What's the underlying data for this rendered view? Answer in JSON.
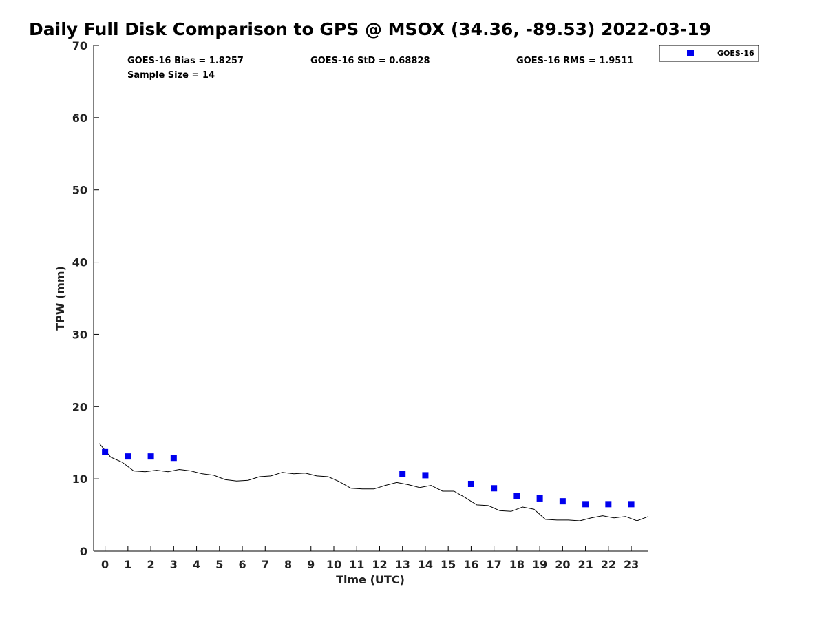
{
  "title": "Daily Full Disk Comparison to GPS @ MSOX (34.36, -89.53) 2022-03-19",
  "stats": {
    "bias": "GOES-16 Bias = 1.8257",
    "std": "GOES-16 StD = 0.68828",
    "rms": "GOES-16 RMS = 1.9511",
    "sample": "Sample Size = 14"
  },
  "legend": {
    "label": "GOES-16",
    "color": "#0000ee"
  },
  "chart_data": {
    "type": "scatter",
    "xlabel": "Time (UTC)",
    "ylabel": "TPW (mm)",
    "xlim": [
      -0.5,
      23.75
    ],
    "ylim": [
      0,
      70
    ],
    "xticks": [
      "0",
      "1",
      "2",
      "3",
      "4",
      "5",
      "6",
      "7",
      "8",
      "9",
      "10",
      "11",
      "12",
      "13",
      "14",
      "15",
      "16",
      "17",
      "18",
      "19",
      "20",
      "21",
      "22",
      "23"
    ],
    "yticks": [
      "0",
      "10",
      "20",
      "30",
      "40",
      "50",
      "60",
      "70"
    ],
    "grid": false,
    "legend_position": "top-right",
    "series": [
      {
        "name": "GOES-16",
        "kind": "markers",
        "color": "#0000ee",
        "x": [
          0,
          1,
          2,
          3,
          13,
          14,
          16,
          17,
          18,
          19,
          20,
          21,
          22,
          23
        ],
        "y": [
          13.7,
          13.1,
          13.1,
          12.9,
          10.7,
          10.5,
          9.3,
          8.7,
          7.6,
          7.3,
          6.9,
          6.5,
          6.5,
          6.5
        ]
      },
      {
        "kind": "line",
        "color": "#000000",
        "x": [
          -0.25,
          0.25,
          0.75,
          1.25,
          1.75,
          2.25,
          2.75,
          3.25,
          3.75,
          4.25,
          4.75,
          5.25,
          5.75,
          6.25,
          6.75,
          7.25,
          7.75,
          8.25,
          8.75,
          9.25,
          9.75,
          10.25,
          10.75,
          11.25,
          11.75,
          12.25,
          12.75,
          13.25,
          13.75,
          14.25,
          14.75,
          15.25,
          15.75,
          16.25,
          16.75,
          17.25,
          17.75,
          18.25,
          18.75,
          19.25,
          19.75,
          20.25,
          20.75,
          21.25,
          21.75,
          22.25,
          22.75,
          23.25,
          23.75
        ],
        "y": [
          14.9,
          13.0,
          12.3,
          11.1,
          11.0,
          11.2,
          11.0,
          11.3,
          11.1,
          10.7,
          10.5,
          9.9,
          9.7,
          9.8,
          10.3,
          10.4,
          10.9,
          10.7,
          10.8,
          10.4,
          10.3,
          9.6,
          8.7,
          8.6,
          8.6,
          9.1,
          9.5,
          9.2,
          8.8,
          9.1,
          8.3,
          8.3,
          7.4,
          6.4,
          6.3,
          5.6,
          5.5,
          6.1,
          5.8,
          4.4,
          4.3,
          4.3,
          4.2,
          4.6,
          4.9,
          4.6,
          4.8,
          4.2,
          4.8
        ]
      }
    ]
  }
}
